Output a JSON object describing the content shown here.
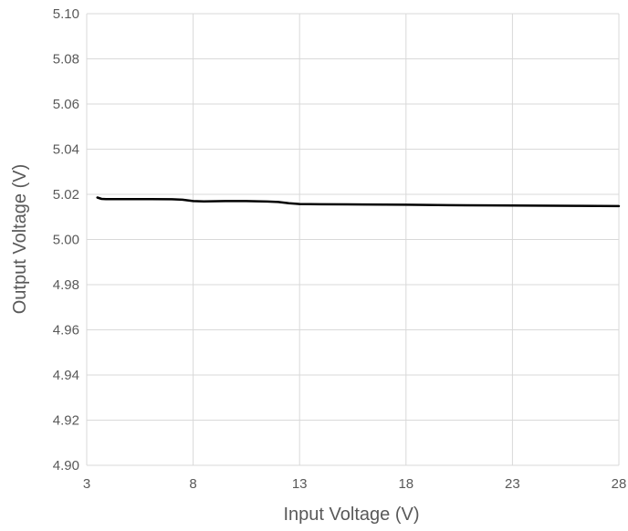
{
  "chart_data": {
    "type": "line",
    "title": "",
    "xlabel": "Input Voltage (V)",
    "ylabel": "Output Voltage (V)",
    "xlim": [
      3,
      28
    ],
    "ylim": [
      4.9,
      5.1
    ],
    "x_ticks": [
      "3",
      "8",
      "13",
      "18",
      "23",
      "28"
    ],
    "y_ticks": [
      "5.10",
      "5.08",
      "5.06",
      "5.04",
      "5.02",
      "5.00",
      "4.98",
      "4.96",
      "4.94",
      "4.92",
      "4.90"
    ],
    "grid": true,
    "legend": "none",
    "series": [
      {
        "color": "#000000",
        "x": [
          3.5,
          3.7,
          3.9,
          4.3,
          5.0,
          6.0,
          7.0,
          7.5,
          8.0,
          8.5,
          9.5,
          10.5,
          11.5,
          12.0,
          12.5,
          13.0,
          14.0,
          16.0,
          18.0,
          20.0,
          22.0,
          24.0,
          26.0,
          28.0
        ],
        "y": [
          5.0186,
          5.018,
          5.0179,
          5.0179,
          5.0179,
          5.0179,
          5.0178,
          5.0176,
          5.017,
          5.0169,
          5.017,
          5.017,
          5.0168,
          5.0166,
          5.0161,
          5.0157,
          5.0156,
          5.0155,
          5.0154,
          5.0152,
          5.0151,
          5.015,
          5.0149,
          5.0148
        ]
      }
    ]
  }
}
